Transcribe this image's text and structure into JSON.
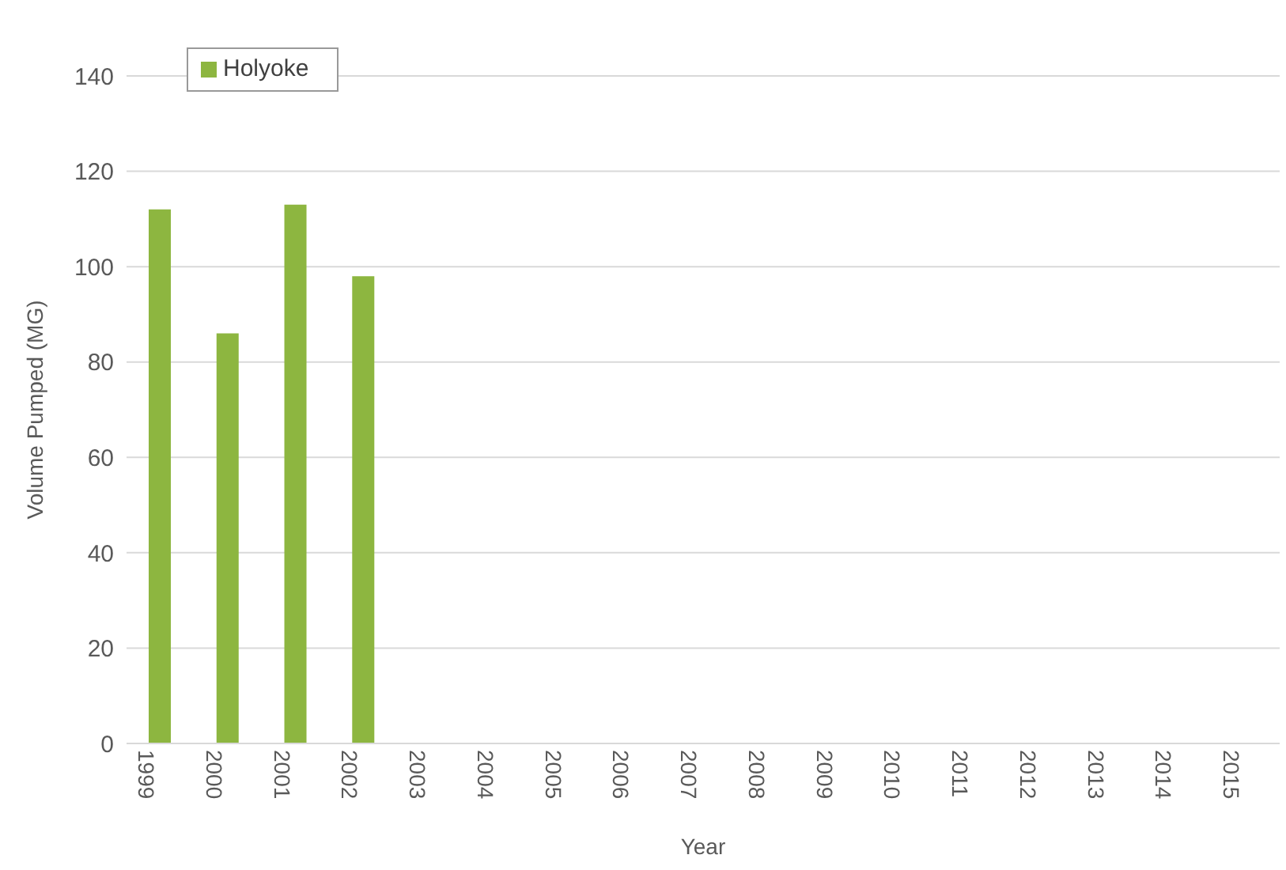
{
  "chart_data": {
    "type": "bar",
    "xlabel": "Year",
    "ylabel": "Volume Pumped (MG)",
    "categories": [
      "1999",
      "2000",
      "2001",
      "2002",
      "2003",
      "2004",
      "2005",
      "2006",
      "2007",
      "2008",
      "2009",
      "2010",
      "2011",
      "2012",
      "2013",
      "2014",
      "2015"
    ],
    "series": [
      {
        "name": "Holyoke",
        "color": "#8db640",
        "values": [
          112,
          86,
          113,
          98,
          null,
          null,
          null,
          null,
          null,
          null,
          null,
          null,
          null,
          null,
          null,
          null,
          null
        ]
      }
    ],
    "ylim": [
      0,
      140
    ],
    "yticks": [
      0,
      20,
      40,
      60,
      80,
      100,
      120,
      140
    ],
    "grid": "y",
    "legend": "top left"
  }
}
